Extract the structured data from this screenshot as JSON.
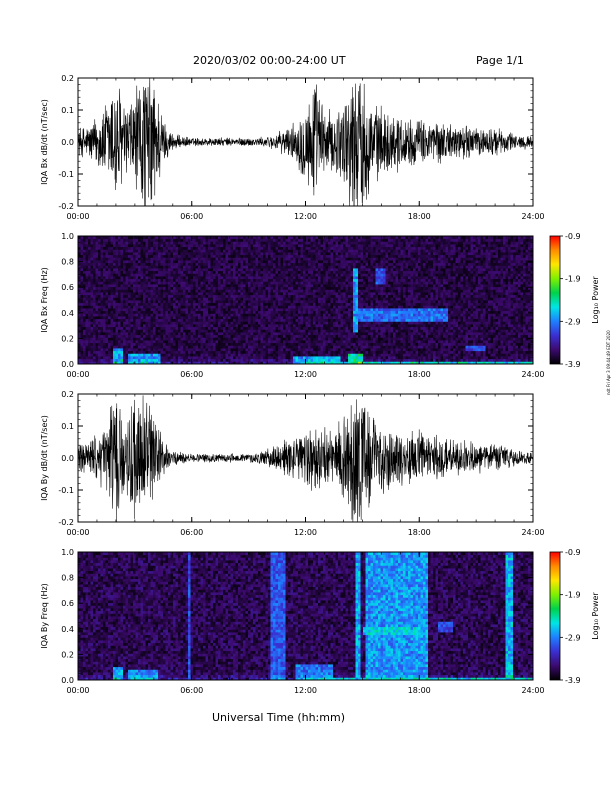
{
  "header": {
    "title": "2020/03/02  00:00-24:00 UT",
    "page_label": "Page 1/1"
  },
  "side_note": "ndt Fri Apr 3 09:44:49 EDT 2020",
  "chart_data": [
    {
      "type": "line",
      "ylabel": "IQA Bx dB/dt (nT/sec)",
      "xlabel": "",
      "xlim": [
        "00:00",
        "24:00"
      ],
      "ylim": [
        -0.2,
        0.2
      ],
      "x_ticks": [
        "00:00",
        "06:00",
        "12:00",
        "18:00",
        "24:00"
      ],
      "y_ticks": [
        "-0.2",
        "-0.1",
        "0.0",
        "0.1",
        "0.2"
      ],
      "grid": false,
      "amplitude_envelope": {
        "x_hours": [
          0,
          0.5,
          1,
          1.5,
          2,
          2.5,
          3,
          3.5,
          4,
          4.5,
          5,
          5.5,
          6,
          6.5,
          7,
          7.5,
          8,
          8.5,
          9,
          9.5,
          10,
          10.5,
          11,
          11.5,
          12,
          12.5,
          13,
          13.5,
          14,
          14.5,
          15,
          15.5,
          16,
          16.5,
          17,
          17.5,
          18,
          18.5,
          19,
          19.5,
          20,
          20.5,
          21,
          21.5,
          22,
          22.5,
          23,
          23.5,
          24
        ],
        "amplitude": [
          0.05,
          0.06,
          0.09,
          0.14,
          0.25,
          0.12,
          0.18,
          0.26,
          0.25,
          0.08,
          0.03,
          0.02,
          0.015,
          0.015,
          0.015,
          0.015,
          0.015,
          0.015,
          0.015,
          0.015,
          0.02,
          0.03,
          0.05,
          0.07,
          0.15,
          0.22,
          0.12,
          0.1,
          0.16,
          0.25,
          0.25,
          0.14,
          0.12,
          0.1,
          0.1,
          0.08,
          0.08,
          0.07,
          0.08,
          0.06,
          0.06,
          0.06,
          0.05,
          0.05,
          0.05,
          0.04,
          0.03,
          0.025,
          0.02
        ]
      }
    },
    {
      "type": "heatmap",
      "ylabel": "IQA Bx Freq (Hz)",
      "xlabel": "",
      "xlim": [
        "00:00",
        "24:00"
      ],
      "ylim": [
        0.0,
        1.0
      ],
      "x_ticks": [
        "00:00",
        "06:00",
        "12:00",
        "18:00",
        "24:00"
      ],
      "y_ticks": [
        "0.0",
        "0.2",
        "0.4",
        "0.6",
        "0.8",
        "1.0"
      ],
      "colorbar": {
        "label": "Log₁₀ Power",
        "range": [
          -3.9,
          -0.9
        ],
        "ticks": [
          "-0.9",
          "-1.9",
          "-2.9",
          "-3.9"
        ]
      },
      "noise_level": 0.1,
      "features": [
        {
          "t0": 1.8,
          "t1": 2.4,
          "f0": 0.0,
          "f1": 0.12,
          "level": 0.42
        },
        {
          "t0": 2.6,
          "t1": 4.3,
          "f0": 0.0,
          "f1": 0.09,
          "level": 0.38
        },
        {
          "t0": 11.4,
          "t1": 13.8,
          "f0": 0.0,
          "f1": 0.06,
          "level": 0.38
        },
        {
          "t0": 14.3,
          "t1": 15.0,
          "f0": 0.0,
          "f1": 0.08,
          "level": 0.55
        },
        {
          "t0": 12.0,
          "t1": 24.0,
          "f0": 0.0,
          "f1": 0.025,
          "level": 0.42
        },
        {
          "t0": 14.5,
          "t1": 14.8,
          "f0": 0.25,
          "f1": 0.75,
          "level": 0.38
        },
        {
          "t0": 14.7,
          "t1": 19.5,
          "f0": 0.33,
          "f1": 0.44,
          "level": 0.33
        },
        {
          "t0": 15.7,
          "t1": 16.2,
          "f0": 0.62,
          "f1": 0.76,
          "level": 0.3
        },
        {
          "t0": 20.5,
          "t1": 21.5,
          "f0": 0.1,
          "f1": 0.14,
          "level": 0.28
        }
      ]
    },
    {
      "type": "line",
      "ylabel": "IQA By dB/dt (nT/sec)",
      "xlabel": "",
      "xlim": [
        "00:00",
        "24:00"
      ],
      "ylim": [
        -0.2,
        0.2
      ],
      "x_ticks": [
        "00:00",
        "06:00",
        "12:00",
        "18:00",
        "24:00"
      ],
      "y_ticks": [
        "-0.2",
        "-0.1",
        "0.0",
        "0.1",
        "0.2"
      ],
      "grid": false,
      "amplitude_envelope": {
        "x_hours": [
          0,
          0.5,
          1,
          1.5,
          2,
          2.5,
          3,
          3.5,
          4,
          4.5,
          5,
          5.5,
          6,
          6.5,
          7,
          7.5,
          8,
          8.5,
          9,
          9.5,
          10,
          10.5,
          11,
          11.5,
          12,
          12.5,
          13,
          13.5,
          14,
          14.5,
          15,
          15.5,
          16,
          16.5,
          17,
          17.5,
          18,
          18.5,
          19,
          19.5,
          20,
          20.5,
          21,
          21.5,
          22,
          22.5,
          23,
          23.5,
          24
        ],
        "amplitude": [
          0.05,
          0.06,
          0.08,
          0.12,
          0.25,
          0.1,
          0.25,
          0.25,
          0.14,
          0.06,
          0.03,
          0.02,
          0.015,
          0.015,
          0.015,
          0.015,
          0.015,
          0.015,
          0.015,
          0.02,
          0.03,
          0.05,
          0.07,
          0.07,
          0.1,
          0.12,
          0.1,
          0.1,
          0.14,
          0.25,
          0.25,
          0.16,
          0.12,
          0.11,
          0.1,
          0.09,
          0.1,
          0.08,
          0.09,
          0.07,
          0.07,
          0.06,
          0.05,
          0.05,
          0.05,
          0.04,
          0.03,
          0.025,
          0.02
        ]
      }
    },
    {
      "type": "heatmap",
      "ylabel": "IQA By Freq (Hz)",
      "xlabel": "Universal Time (hh:mm)",
      "xlim": [
        "00:00",
        "24:00"
      ],
      "ylim": [
        0.0,
        1.0
      ],
      "x_ticks": [
        "00:00",
        "06:00",
        "12:00",
        "18:00",
        "24:00"
      ],
      "y_ticks": [
        "0.0",
        "0.2",
        "0.4",
        "0.6",
        "0.8",
        "1.0"
      ],
      "colorbar": {
        "label": "Log₁₀ Power",
        "range": [
          -3.9,
          -0.9
        ],
        "ticks": [
          "-0.9",
          "-1.9",
          "-2.9",
          "-3.9"
        ]
      },
      "noise_level": 0.12,
      "features": [
        {
          "t0": 1.8,
          "t1": 2.4,
          "f0": 0.0,
          "f1": 0.1,
          "level": 0.4
        },
        {
          "t0": 2.6,
          "t1": 4.2,
          "f0": 0.0,
          "f1": 0.09,
          "level": 0.36
        },
        {
          "t0": 5.8,
          "t1": 5.95,
          "f0": 0.0,
          "f1": 1.0,
          "level": 0.28
        },
        {
          "t0": 10.2,
          "t1": 11.0,
          "f0": 0.0,
          "f1": 1.0,
          "level": 0.3
        },
        {
          "t0": 11.5,
          "t1": 13.5,
          "f0": 0.0,
          "f1": 0.12,
          "level": 0.34
        },
        {
          "t0": 14.7,
          "t1": 14.85,
          "f0": 0.0,
          "f1": 1.0,
          "level": 0.4
        },
        {
          "t0": 15.1,
          "t1": 18.5,
          "f0": 0.0,
          "f1": 1.0,
          "level": 0.38
        },
        {
          "t0": 15.0,
          "t1": 18.5,
          "f0": 0.35,
          "f1": 0.42,
          "level": 0.45
        },
        {
          "t0": 19.0,
          "t1": 19.8,
          "f0": 0.38,
          "f1": 0.45,
          "level": 0.28
        },
        {
          "t0": 22.5,
          "t1": 22.9,
          "f0": 0.0,
          "f1": 1.0,
          "level": 0.42
        },
        {
          "t0": 12.0,
          "t1": 24.0,
          "f0": 0.0,
          "f1": 0.025,
          "level": 0.4
        }
      ]
    }
  ],
  "colors": {
    "axes": "#000000",
    "trace": "#000000",
    "colormap": [
      "#000000",
      "#3c0a6e",
      "#3a2fd1",
      "#1f7fff",
      "#00e5e5",
      "#00d24c",
      "#7ff000",
      "#ffe600",
      "#ff8c00",
      "#ff0000"
    ]
  }
}
